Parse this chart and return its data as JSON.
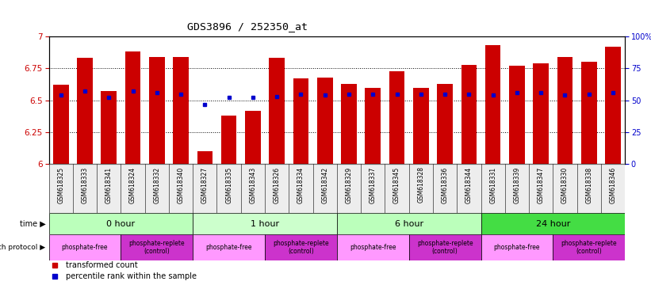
{
  "title": "GDS3896 / 252350_at",
  "samples": [
    "GSM618325",
    "GSM618333",
    "GSM618341",
    "GSM618324",
    "GSM618332",
    "GSM618340",
    "GSM618327",
    "GSM618335",
    "GSM618343",
    "GSM618326",
    "GSM618334",
    "GSM618342",
    "GSM618329",
    "GSM618337",
    "GSM618345",
    "GSM618328",
    "GSM618336",
    "GSM618344",
    "GSM618331",
    "GSM618339",
    "GSM618347",
    "GSM618330",
    "GSM618338",
    "GSM618346"
  ],
  "bar_values": [
    6.62,
    6.83,
    6.57,
    6.88,
    6.84,
    6.84,
    6.1,
    6.38,
    6.42,
    6.83,
    6.67,
    6.68,
    6.63,
    6.6,
    6.73,
    6.6,
    6.63,
    6.78,
    6.93,
    6.77,
    6.79,
    6.84,
    6.8,
    6.92
  ],
  "percentile_values": [
    6.54,
    6.57,
    6.52,
    6.57,
    6.56,
    6.55,
    6.47,
    6.52,
    6.52,
    6.53,
    6.55,
    6.54,
    6.55,
    6.55,
    6.55,
    6.55,
    6.55,
    6.55,
    6.54,
    6.56,
    6.56,
    6.54,
    6.55,
    6.56
  ],
  "ylim": [
    6.0,
    7.0
  ],
  "yticks": [
    6.0,
    6.25,
    6.5,
    6.75,
    7.0
  ],
  "ytick_labels": [
    "6",
    "6.25",
    "6.5",
    "6.75",
    "7"
  ],
  "bar_color": "#cc0000",
  "percentile_color": "#0000cc",
  "time_groups": [
    {
      "label": "0 hour",
      "start": 0,
      "end": 6,
      "color": "#bbffbb"
    },
    {
      "label": "1 hour",
      "start": 6,
      "end": 12,
      "color": "#ccffcc"
    },
    {
      "label": "6 hour",
      "start": 12,
      "end": 18,
      "color": "#bbffbb"
    },
    {
      "label": "24 hour",
      "start": 18,
      "end": 24,
      "color": "#44dd44"
    }
  ],
  "protocol_groups": [
    {
      "label": "phosphate-free",
      "start": 0,
      "end": 3,
      "color": "#ff99ff"
    },
    {
      "label": "phosphate-replete\n(control)",
      "start": 3,
      "end": 6,
      "color": "#cc33cc"
    },
    {
      "label": "phosphate-free",
      "start": 6,
      "end": 9,
      "color": "#ff99ff"
    },
    {
      "label": "phosphate-replete\n(control)",
      "start": 9,
      "end": 12,
      "color": "#cc33cc"
    },
    {
      "label": "phosphate-free",
      "start": 12,
      "end": 15,
      "color": "#ff99ff"
    },
    {
      "label": "phosphate-replete\n(control)",
      "start": 15,
      "end": 18,
      "color": "#cc33cc"
    },
    {
      "label": "phosphate-free",
      "start": 18,
      "end": 21,
      "color": "#ff99ff"
    },
    {
      "label": "phosphate-replete\n(control)",
      "start": 21,
      "end": 24,
      "color": "#cc33cc"
    }
  ],
  "left_axis_color": "#cc0000",
  "right_axis_color": "#0000cc",
  "background_color": "#ffffff"
}
